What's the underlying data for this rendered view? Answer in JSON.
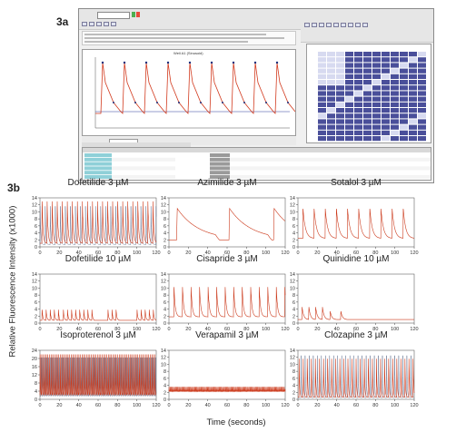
{
  "figure": {
    "panel_a_label": "3a",
    "panel_b_label": "3b",
    "y_axis_label": "Relative Fluorescence Intensity (x1000)",
    "x_axis_label": "Time (seconds)"
  },
  "software": {
    "plot_title": "Well A1 (Sinusoid)",
    "colors": {
      "trace": "#d23a1e",
      "marker": "#1a2e7a",
      "plate_fill": "#4a4f9a"
    }
  },
  "chart_data": [
    {
      "type": "line",
      "title": "Dofetilide 3 µM",
      "ylim": [
        0,
        14
      ],
      "xlim": [
        0,
        120
      ],
      "yticks": [
        0,
        2,
        4,
        6,
        8,
        10,
        12,
        14
      ],
      "xticks": [
        0,
        20,
        40,
        60,
        80,
        100,
        120
      ],
      "series_color": "#cc3b1d",
      "overlay": true
    },
    {
      "type": "line",
      "title": "Azimilide 3 µM",
      "ylim": [
        0,
        14
      ],
      "xlim": [
        0,
        120
      ],
      "yticks": [
        0,
        2,
        4,
        6,
        8,
        10,
        12,
        14
      ],
      "xticks": [
        0,
        20,
        40,
        60,
        80,
        100,
        120
      ],
      "series_color": "#cc3b1d",
      "overlay": false
    },
    {
      "type": "line",
      "title": "Sotalol 3 µM",
      "ylim": [
        0,
        14
      ],
      "xlim": [
        0,
        120
      ],
      "yticks": [
        0,
        2,
        4,
        6,
        8,
        10,
        12,
        14
      ],
      "xticks": [
        0,
        20,
        40,
        60,
        80,
        100,
        120
      ],
      "series_color": "#cc3b1d",
      "overlay": false
    },
    {
      "type": "line",
      "title": "Dofetilide 10 µM",
      "ylim": [
        0,
        14
      ],
      "xlim": [
        0,
        120
      ],
      "yticks": [
        0,
        2,
        4,
        6,
        8,
        10,
        12,
        14
      ],
      "xticks": [
        0,
        20,
        40,
        60,
        80,
        100,
        120
      ],
      "series_color": "#cc3b1d",
      "overlay": false
    },
    {
      "type": "line",
      "title": "Cisapride 3 µM",
      "ylim": [
        0,
        14
      ],
      "xlim": [
        0,
        120
      ],
      "yticks": [
        0,
        2,
        4,
        6,
        8,
        10,
        12,
        14
      ],
      "xticks": [
        0,
        20,
        40,
        60,
        80,
        100,
        120
      ],
      "series_color": "#cc3b1d",
      "overlay": false
    },
    {
      "type": "line",
      "title": "Quinidine 10 µM",
      "ylim": [
        0,
        14
      ],
      "xlim": [
        0,
        120
      ],
      "yticks": [
        0,
        2,
        4,
        6,
        8,
        10,
        12,
        14
      ],
      "xticks": [
        0,
        20,
        40,
        60,
        80,
        100,
        120
      ],
      "series_color": "#cc3b1d",
      "overlay": false
    },
    {
      "type": "line",
      "title": "Isoproterenol 3 µM",
      "ylim": [
        0,
        24
      ],
      "xlim": [
        0,
        120
      ],
      "yticks": [
        0,
        4,
        8,
        12,
        16,
        20,
        24
      ],
      "xticks": [
        0,
        20,
        40,
        60,
        80,
        100,
        120
      ],
      "series_color": "#cc3b1d",
      "overlay": true
    },
    {
      "type": "line",
      "title": "Verapamil 3 µM",
      "ylim": [
        0,
        14
      ],
      "xlim": [
        0,
        120
      ],
      "yticks": [
        0,
        2,
        4,
        6,
        8,
        10,
        12,
        14
      ],
      "xticks": [
        0,
        20,
        40,
        60,
        80,
        100,
        120
      ],
      "series_color": "#cc3b1d",
      "overlay": false
    },
    {
      "type": "line",
      "title": "Clozapine 3 µM",
      "ylim": [
        0,
        14
      ],
      "xlim": [
        0,
        120
      ],
      "yticks": [
        0,
        2,
        4,
        6,
        8,
        10,
        12,
        14
      ],
      "xticks": [
        0,
        20,
        40,
        60,
        80,
        100,
        120
      ],
      "series_color": "#cc3b1d",
      "overlay": true
    }
  ]
}
